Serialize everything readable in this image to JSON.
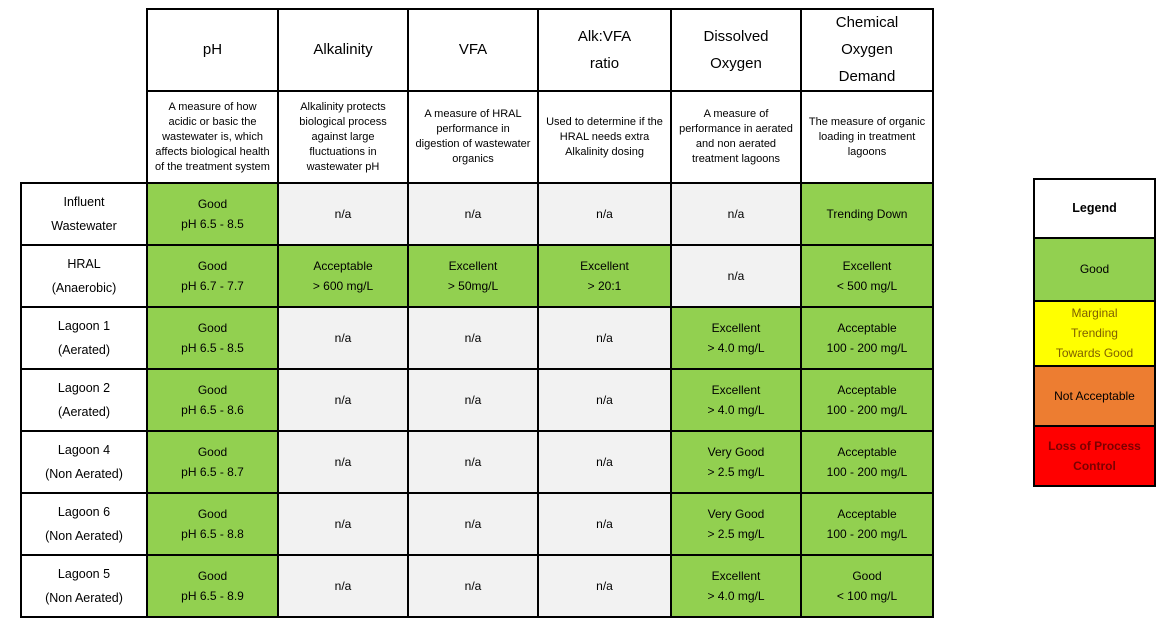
{
  "colors": {
    "good_bg": "#92D050",
    "na_bg": "#F2F2F2",
    "marginal_bg": "#FFFF00",
    "marginal_text": "#7F6000",
    "not_acceptable_bg": "#ED7D31",
    "loss_bg": "#FF0000",
    "loss_text": "#7B0000",
    "border": "#000000"
  },
  "table": {
    "columns": [
      {
        "id": "ph",
        "label_lines": [
          "pH"
        ],
        "description": "A measure of how acidic or basic the wastewater is, which affects biological health of the treatment system"
      },
      {
        "id": "alkalinity",
        "label_lines": [
          "Alkalinity"
        ],
        "description": "Alkalinity protects biological process against large fluctuations in wastewater pH"
      },
      {
        "id": "vfa",
        "label_lines": [
          "VFA"
        ],
        "description": "A measure of HRAL performance in digestion of wastewater organics"
      },
      {
        "id": "alk-vfa-ratio",
        "label_lines": [
          "Alk:VFA",
          "ratio"
        ],
        "description": "Used to determine if the HRAL needs extra Alkalinity dosing"
      },
      {
        "id": "dissolved-oxygen",
        "label_lines": [
          "Dissolved",
          "Oxygen"
        ],
        "description": "A measure of performance in aerated and non aerated treatment lagoons"
      },
      {
        "id": "chemical-oxygen-demand",
        "label_lines": [
          "Chemical",
          "Oxygen",
          "Demand"
        ],
        "description": "The measure of organic loading in treatment lagoons"
      }
    ],
    "rows": [
      {
        "name_lines": [
          "Influent",
          "Wastewater"
        ],
        "cells": [
          {
            "status": "good",
            "lines": [
              "Good",
              "pH 6.5 - 8.5"
            ]
          },
          {
            "status": "na",
            "lines": [
              "n/a"
            ]
          },
          {
            "status": "na",
            "lines": [
              "n/a"
            ]
          },
          {
            "status": "na",
            "lines": [
              "n/a"
            ]
          },
          {
            "status": "na",
            "lines": [
              "n/a"
            ]
          },
          {
            "status": "good",
            "lines": [
              "Trending Down"
            ]
          }
        ]
      },
      {
        "name_lines": [
          "HRAL",
          "(Anaerobic)"
        ],
        "cells": [
          {
            "status": "good",
            "lines": [
              "Good",
              "pH 6.7 - 7.7"
            ]
          },
          {
            "status": "good",
            "lines": [
              "Acceptable",
              "> 600 mg/L"
            ]
          },
          {
            "status": "good",
            "lines": [
              "Excellent",
              "> 50mg/L"
            ]
          },
          {
            "status": "good",
            "lines": [
              "Excellent",
              "> 20:1"
            ]
          },
          {
            "status": "na",
            "lines": [
              "n/a"
            ]
          },
          {
            "status": "good",
            "lines": [
              "Excellent",
              "< 500 mg/L"
            ]
          }
        ]
      },
      {
        "name_lines": [
          "Lagoon 1",
          "(Aerated)"
        ],
        "cells": [
          {
            "status": "good",
            "lines": [
              "Good",
              "pH 6.5 - 8.5"
            ]
          },
          {
            "status": "na",
            "lines": [
              "n/a"
            ]
          },
          {
            "status": "na",
            "lines": [
              "n/a"
            ]
          },
          {
            "status": "na",
            "lines": [
              "n/a"
            ]
          },
          {
            "status": "good",
            "lines": [
              "Excellent",
              "> 4.0 mg/L"
            ]
          },
          {
            "status": "good",
            "lines": [
              "Acceptable",
              "100 - 200 mg/L"
            ]
          }
        ]
      },
      {
        "name_lines": [
          "Lagoon 2",
          "(Aerated)"
        ],
        "cells": [
          {
            "status": "good",
            "lines": [
              "Good",
              "pH 6.5 - 8.6"
            ]
          },
          {
            "status": "na",
            "lines": [
              "n/a"
            ]
          },
          {
            "status": "na",
            "lines": [
              "n/a"
            ]
          },
          {
            "status": "na",
            "lines": [
              "n/a"
            ]
          },
          {
            "status": "good",
            "lines": [
              "Excellent",
              "> 4.0 mg/L"
            ]
          },
          {
            "status": "good",
            "lines": [
              "Acceptable",
              "100 - 200 mg/L"
            ]
          }
        ]
      },
      {
        "name_lines": [
          "Lagoon 4",
          "(Non Aerated)"
        ],
        "cells": [
          {
            "status": "good",
            "lines": [
              "Good",
              "pH 6.5 - 8.7"
            ]
          },
          {
            "status": "na",
            "lines": [
              "n/a"
            ]
          },
          {
            "status": "na",
            "lines": [
              "n/a"
            ]
          },
          {
            "status": "na",
            "lines": [
              "n/a"
            ]
          },
          {
            "status": "good",
            "lines": [
              "Very Good",
              "> 2.5 mg/L"
            ]
          },
          {
            "status": "good",
            "lines": [
              "Acceptable",
              "100 - 200 mg/L"
            ]
          }
        ]
      },
      {
        "name_lines": [
          "Lagoon 6",
          "(Non Aerated)"
        ],
        "cells": [
          {
            "status": "good",
            "lines": [
              "Good",
              "pH 6.5 - 8.8"
            ]
          },
          {
            "status": "na",
            "lines": [
              "n/a"
            ]
          },
          {
            "status": "na",
            "lines": [
              "n/a"
            ]
          },
          {
            "status": "na",
            "lines": [
              "n/a"
            ]
          },
          {
            "status": "good",
            "lines": [
              "Very Good",
              "> 2.5 mg/L"
            ]
          },
          {
            "status": "good",
            "lines": [
              "Acceptable",
              "100 - 200 mg/L"
            ]
          }
        ]
      },
      {
        "name_lines": [
          "Lagoon 5",
          "(Non Aerated)"
        ],
        "cells": [
          {
            "status": "good",
            "lines": [
              "Good",
              "pH 6.5 - 8.9"
            ]
          },
          {
            "status": "na",
            "lines": [
              "n/a"
            ]
          },
          {
            "status": "na",
            "lines": [
              "n/a"
            ]
          },
          {
            "status": "na",
            "lines": [
              "n/a"
            ]
          },
          {
            "status": "good",
            "lines": [
              "Excellent",
              "> 4.0 mg/L"
            ]
          },
          {
            "status": "good",
            "lines": [
              "Good",
              "< 100 mg/L"
            ]
          }
        ]
      }
    ]
  },
  "legend": {
    "title": "Legend",
    "items": [
      {
        "status": "good",
        "lines": [
          "Good"
        ]
      },
      {
        "status": "marginal",
        "lines": [
          "Marginal",
          "Trending",
          "Towards Good"
        ]
      },
      {
        "status": "not-acceptable",
        "lines": [
          "Not Acceptable"
        ]
      },
      {
        "status": "loss",
        "lines": [
          "Loss of Process",
          "Control"
        ]
      }
    ]
  }
}
